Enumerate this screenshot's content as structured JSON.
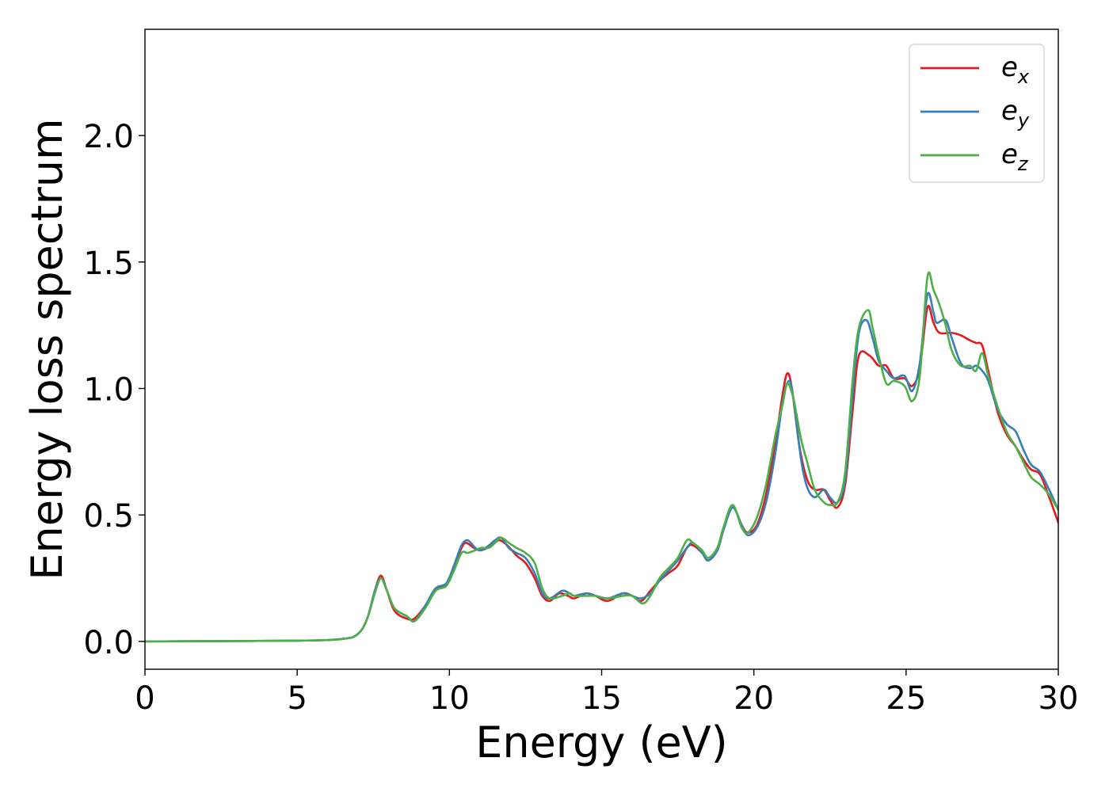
{
  "chart_data": {
    "type": "line",
    "xlabel": "Energy (eV)",
    "ylabel": "Energy loss spectrum",
    "xlim": [
      0,
      30
    ],
    "ylim": [
      -0.11,
      2.42
    ],
    "xticks": [
      0,
      5,
      10,
      15,
      20,
      25,
      30
    ],
    "yticks": [
      0.0,
      0.5,
      1.0,
      1.5,
      2.0
    ],
    "xtick_labels": [
      "0",
      "5",
      "10",
      "15",
      "20",
      "25",
      "30"
    ],
    "ytick_labels": [
      "0.0",
      "0.5",
      "1.0",
      "1.5",
      "2.0"
    ],
    "grid": false,
    "legend_position": "top-right",
    "series": [
      {
        "name": "e_x",
        "label_base": "e",
        "label_sub": "x",
        "color": "#e41a1c",
        "points": [
          [
            0,
            0
          ],
          [
            5,
            0.003
          ],
          [
            6.5,
            0.01
          ],
          [
            7.0,
            0.03
          ],
          [
            7.3,
            0.09
          ],
          [
            7.55,
            0.2
          ],
          [
            7.75,
            0.26
          ],
          [
            7.95,
            0.2
          ],
          [
            8.2,
            0.12
          ],
          [
            8.6,
            0.09
          ],
          [
            8.85,
            0.09
          ],
          [
            9.2,
            0.14
          ],
          [
            9.55,
            0.21
          ],
          [
            9.9,
            0.22
          ],
          [
            10.15,
            0.3
          ],
          [
            10.4,
            0.37
          ],
          [
            10.55,
            0.39
          ],
          [
            10.8,
            0.37
          ],
          [
            11.0,
            0.36
          ],
          [
            11.25,
            0.37
          ],
          [
            11.5,
            0.39
          ],
          [
            11.65,
            0.4
          ],
          [
            11.9,
            0.38
          ],
          [
            12.2,
            0.34
          ],
          [
            12.5,
            0.31
          ],
          [
            12.8,
            0.25
          ],
          [
            13.05,
            0.18
          ],
          [
            13.3,
            0.16
          ],
          [
            13.6,
            0.19
          ],
          [
            13.9,
            0.18
          ],
          [
            14.1,
            0.17
          ],
          [
            14.5,
            0.19
          ],
          [
            14.8,
            0.18
          ],
          [
            15.2,
            0.16
          ],
          [
            15.7,
            0.19
          ],
          [
            16.0,
            0.18
          ],
          [
            16.3,
            0.16
          ],
          [
            16.6,
            0.2
          ],
          [
            16.9,
            0.24
          ],
          [
            17.2,
            0.27
          ],
          [
            17.5,
            0.3
          ],
          [
            17.8,
            0.37
          ],
          [
            18.0,
            0.38
          ],
          [
            18.3,
            0.35
          ],
          [
            18.5,
            0.32
          ],
          [
            18.8,
            0.36
          ],
          [
            19.0,
            0.44
          ],
          [
            19.3,
            0.53
          ],
          [
            19.6,
            0.46
          ],
          [
            19.8,
            0.43
          ],
          [
            20.1,
            0.46
          ],
          [
            20.4,
            0.58
          ],
          [
            20.7,
            0.78
          ],
          [
            20.95,
            0.98
          ],
          [
            21.1,
            1.06
          ],
          [
            21.25,
            1.0
          ],
          [
            21.5,
            0.77
          ],
          [
            21.75,
            0.64
          ],
          [
            22.0,
            0.6
          ],
          [
            22.3,
            0.6
          ],
          [
            22.5,
            0.56
          ],
          [
            22.75,
            0.53
          ],
          [
            23.0,
            0.62
          ],
          [
            23.25,
            0.92
          ],
          [
            23.45,
            1.13
          ],
          [
            23.8,
            1.13
          ],
          [
            24.1,
            1.09
          ],
          [
            24.35,
            1.09
          ],
          [
            24.6,
            1.04
          ],
          [
            24.95,
            1.04
          ],
          [
            25.2,
            1.01
          ],
          [
            25.45,
            1.08
          ],
          [
            25.7,
            1.32
          ],
          [
            25.9,
            1.26
          ],
          [
            26.1,
            1.22
          ],
          [
            26.5,
            1.22
          ],
          [
            26.8,
            1.21
          ],
          [
            27.1,
            1.19
          ],
          [
            27.3,
            1.18
          ],
          [
            27.5,
            1.17
          ],
          [
            27.7,
            1.07
          ],
          [
            28.0,
            0.91
          ],
          [
            28.3,
            0.82
          ],
          [
            28.6,
            0.77
          ],
          [
            28.85,
            0.72
          ],
          [
            29.1,
            0.68
          ],
          [
            29.4,
            0.66
          ],
          [
            29.7,
            0.57
          ],
          [
            30.0,
            0.47
          ]
        ]
      },
      {
        "name": "e_y",
        "label_base": "e",
        "label_sub": "y",
        "color": "#377eb8",
        "points": [
          [
            0,
            0
          ],
          [
            5,
            0.003
          ],
          [
            6.5,
            0.01
          ],
          [
            7.0,
            0.03
          ],
          [
            7.3,
            0.09
          ],
          [
            7.55,
            0.2
          ],
          [
            7.75,
            0.25
          ],
          [
            7.95,
            0.2
          ],
          [
            8.2,
            0.13
          ],
          [
            8.6,
            0.1
          ],
          [
            8.85,
            0.08
          ],
          [
            9.2,
            0.14
          ],
          [
            9.55,
            0.21
          ],
          [
            9.9,
            0.23
          ],
          [
            10.15,
            0.3
          ],
          [
            10.4,
            0.38
          ],
          [
            10.6,
            0.4
          ],
          [
            10.85,
            0.37
          ],
          [
            11.05,
            0.36
          ],
          [
            11.3,
            0.38
          ],
          [
            11.5,
            0.4
          ],
          [
            11.7,
            0.41
          ],
          [
            11.95,
            0.37
          ],
          [
            12.2,
            0.35
          ],
          [
            12.5,
            0.33
          ],
          [
            12.8,
            0.27
          ],
          [
            13.05,
            0.19
          ],
          [
            13.3,
            0.17
          ],
          [
            13.7,
            0.2
          ],
          [
            13.95,
            0.19
          ],
          [
            14.1,
            0.18
          ],
          [
            14.5,
            0.19
          ],
          [
            14.8,
            0.18
          ],
          [
            15.2,
            0.17
          ],
          [
            15.7,
            0.19
          ],
          [
            16.0,
            0.18
          ],
          [
            16.3,
            0.17
          ],
          [
            16.6,
            0.19
          ],
          [
            16.9,
            0.24
          ],
          [
            17.2,
            0.28
          ],
          [
            17.5,
            0.32
          ],
          [
            17.8,
            0.37
          ],
          [
            18.0,
            0.39
          ],
          [
            18.3,
            0.35
          ],
          [
            18.5,
            0.32
          ],
          [
            18.8,
            0.36
          ],
          [
            19.0,
            0.44
          ],
          [
            19.3,
            0.53
          ],
          [
            19.6,
            0.46
          ],
          [
            19.8,
            0.42
          ],
          [
            20.1,
            0.45
          ],
          [
            20.4,
            0.55
          ],
          [
            20.7,
            0.74
          ],
          [
            20.95,
            0.95
          ],
          [
            21.15,
            1.03
          ],
          [
            21.3,
            0.96
          ],
          [
            21.55,
            0.72
          ],
          [
            21.75,
            0.61
          ],
          [
            22.0,
            0.57
          ],
          [
            22.3,
            0.6
          ],
          [
            22.5,
            0.57
          ],
          [
            22.75,
            0.55
          ],
          [
            23.0,
            0.64
          ],
          [
            23.25,
            0.98
          ],
          [
            23.45,
            1.22
          ],
          [
            23.7,
            1.27
          ],
          [
            23.9,
            1.2
          ],
          [
            24.1,
            1.11
          ],
          [
            24.35,
            1.07
          ],
          [
            24.6,
            1.04
          ],
          [
            24.95,
            1.05
          ],
          [
            25.2,
            0.99
          ],
          [
            25.45,
            1.1
          ],
          [
            25.7,
            1.37
          ],
          [
            25.9,
            1.3
          ],
          [
            26.0,
            1.26
          ],
          [
            26.3,
            1.27
          ],
          [
            26.5,
            1.2
          ],
          [
            26.8,
            1.1
          ],
          [
            27.1,
            1.08
          ],
          [
            27.3,
            1.09
          ],
          [
            27.5,
            1.07
          ],
          [
            27.7,
            1.03
          ],
          [
            28.0,
            0.92
          ],
          [
            28.3,
            0.86
          ],
          [
            28.6,
            0.83
          ],
          [
            28.85,
            0.76
          ],
          [
            29.1,
            0.7
          ],
          [
            29.4,
            0.67
          ],
          [
            29.7,
            0.6
          ],
          [
            30.0,
            0.52
          ]
        ]
      },
      {
        "name": "e_z",
        "label_base": "e",
        "label_sub": "z",
        "color": "#4daf4a",
        "points": [
          [
            0,
            0
          ],
          [
            5,
            0.003
          ],
          [
            6.5,
            0.01
          ],
          [
            7.0,
            0.03
          ],
          [
            7.3,
            0.09
          ],
          [
            7.55,
            0.19
          ],
          [
            7.75,
            0.25
          ],
          [
            7.95,
            0.2
          ],
          [
            8.2,
            0.13
          ],
          [
            8.6,
            0.1
          ],
          [
            8.85,
            0.08
          ],
          [
            9.2,
            0.13
          ],
          [
            9.55,
            0.2
          ],
          [
            9.9,
            0.22
          ],
          [
            10.15,
            0.28
          ],
          [
            10.4,
            0.35
          ],
          [
            10.6,
            0.35
          ],
          [
            10.85,
            0.36
          ],
          [
            11.05,
            0.37
          ],
          [
            11.3,
            0.37
          ],
          [
            11.5,
            0.39
          ],
          [
            11.7,
            0.41
          ],
          [
            11.95,
            0.39
          ],
          [
            12.2,
            0.37
          ],
          [
            12.5,
            0.35
          ],
          [
            12.8,
            0.31
          ],
          [
            13.05,
            0.21
          ],
          [
            13.3,
            0.17
          ],
          [
            13.7,
            0.18
          ],
          [
            13.95,
            0.19
          ],
          [
            14.1,
            0.18
          ],
          [
            14.5,
            0.18
          ],
          [
            14.8,
            0.18
          ],
          [
            15.2,
            0.17
          ],
          [
            15.7,
            0.18
          ],
          [
            16.0,
            0.18
          ],
          [
            16.35,
            0.15
          ],
          [
            16.6,
            0.18
          ],
          [
            16.9,
            0.25
          ],
          [
            17.2,
            0.29
          ],
          [
            17.5,
            0.33
          ],
          [
            17.8,
            0.4
          ],
          [
            18.0,
            0.39
          ],
          [
            18.3,
            0.36
          ],
          [
            18.5,
            0.33
          ],
          [
            18.8,
            0.37
          ],
          [
            19.0,
            0.45
          ],
          [
            19.3,
            0.54
          ],
          [
            19.6,
            0.45
          ],
          [
            19.8,
            0.43
          ],
          [
            20.1,
            0.49
          ],
          [
            20.4,
            0.62
          ],
          [
            20.7,
            0.81
          ],
          [
            20.95,
            0.94
          ],
          [
            21.1,
            1.02
          ],
          [
            21.3,
            0.96
          ],
          [
            21.55,
            0.8
          ],
          [
            21.75,
            0.71
          ],
          [
            22.0,
            0.6
          ],
          [
            22.3,
            0.55
          ],
          [
            22.5,
            0.54
          ],
          [
            22.75,
            0.55
          ],
          [
            23.0,
            0.67
          ],
          [
            23.25,
            1.04
          ],
          [
            23.45,
            1.24
          ],
          [
            23.75,
            1.31
          ],
          [
            23.9,
            1.24
          ],
          [
            24.1,
            1.13
          ],
          [
            24.35,
            1.02
          ],
          [
            24.6,
            1.03
          ],
          [
            24.95,
            1.01
          ],
          [
            25.2,
            0.95
          ],
          [
            25.45,
            1.05
          ],
          [
            25.7,
            1.44
          ],
          [
            25.9,
            1.39
          ],
          [
            26.1,
            1.33
          ],
          [
            26.3,
            1.25
          ],
          [
            26.5,
            1.15
          ],
          [
            26.8,
            1.09
          ],
          [
            27.1,
            1.09
          ],
          [
            27.3,
            1.07
          ],
          [
            27.5,
            1.14
          ],
          [
            27.7,
            1.05
          ],
          [
            28.0,
            0.93
          ],
          [
            28.3,
            0.83
          ],
          [
            28.6,
            0.77
          ],
          [
            28.85,
            0.71
          ],
          [
            29.1,
            0.65
          ],
          [
            29.4,
            0.62
          ],
          [
            29.7,
            0.58
          ],
          [
            30.0,
            0.52
          ]
        ]
      }
    ]
  }
}
